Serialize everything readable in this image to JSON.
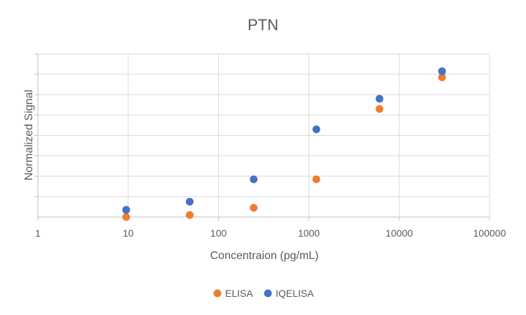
{
  "chart_data": {
    "type": "scatter",
    "title": "PTN",
    "xlabel": "Concentraion (pg/mL)",
    "ylabel": "Normalized Signal",
    "x_scale": "log",
    "xlim": [
      1,
      100000
    ],
    "x_ticks": [
      "1",
      "10",
      "100",
      "1000",
      "10000",
      "100000"
    ],
    "ylim": [
      0,
      8
    ],
    "y_gridlines": 8,
    "y_tick_labels_visible": false,
    "grid": true,
    "legend": "bottom",
    "series": [
      {
        "name": "ELISA",
        "color": "#ED7D31",
        "points": [
          {
            "x": 9.5,
            "y": 0.0
          },
          {
            "x": 48,
            "y": 0.1
          },
          {
            "x": 245,
            "y": 0.45
          },
          {
            "x": 1210,
            "y": 1.85
          },
          {
            "x": 6050,
            "y": 5.3
          },
          {
            "x": 29800,
            "y": 6.85
          }
        ]
      },
      {
        "name": "IQELISA",
        "color": "#4472C4",
        "points": [
          {
            "x": 9.5,
            "y": 0.35
          },
          {
            "x": 48,
            "y": 0.75
          },
          {
            "x": 245,
            "y": 1.85
          },
          {
            "x": 1210,
            "y": 4.3
          },
          {
            "x": 6050,
            "y": 5.8
          },
          {
            "x": 29800,
            "y": 7.15
          }
        ]
      }
    ]
  }
}
